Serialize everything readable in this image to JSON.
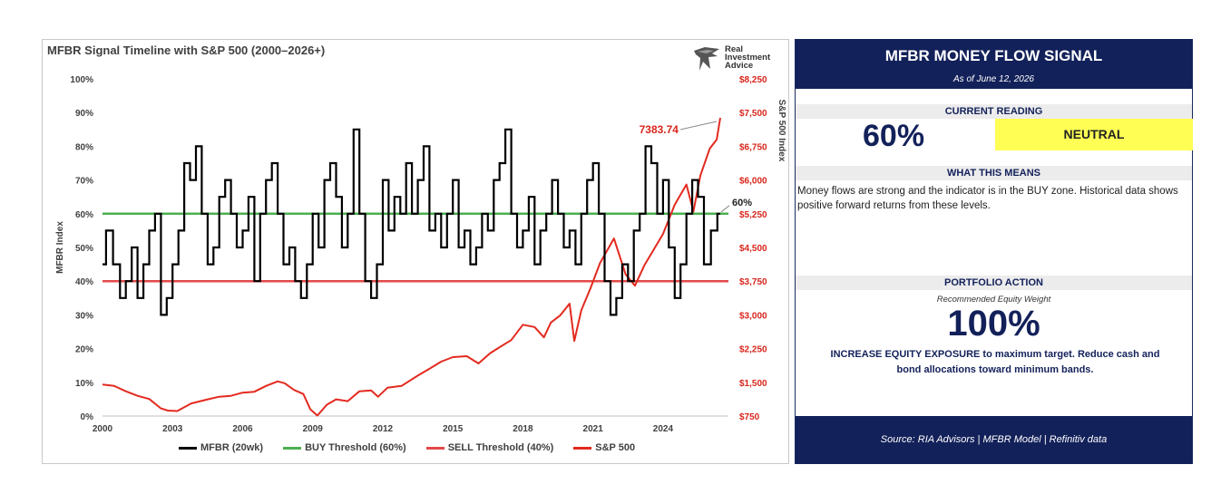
{
  "chart_data": {
    "type": "line",
    "title": "MFBR Signal Timeline with S&P 500 (2000–2026+)",
    "ylabel": "MFBR Index",
    "y2label": "S&P 500 Index",
    "ylim": [
      0,
      100
    ],
    "y2lim": [
      750,
      8250
    ],
    "xlim": [
      2000,
      2026.8
    ],
    "x_ticks": [
      "2000",
      "2003",
      "2006",
      "2009",
      "2012",
      "2015",
      "2018",
      "2021",
      "2024"
    ],
    "y_ticks": [
      "0%",
      "10%",
      "20%",
      "30%",
      "40%",
      "50%",
      "60%",
      "70%",
      "80%",
      "90%",
      "100%"
    ],
    "y2_ticks": [
      "$750",
      "$1,500",
      "$2,250",
      "$3,000",
      "$3,750",
      "$4,500",
      "$5,250",
      "$6,000",
      "$6,750",
      "$7,500",
      "$8,250"
    ],
    "thresholds": {
      "buy": 60,
      "sell": 40
    },
    "annotations": {
      "sp500_last": "7383.74",
      "mfbr_last": "60%"
    },
    "legend_placement": "bottom",
    "series": [
      {
        "name": "MFBR (20wk)",
        "color": "#000000",
        "x": [
          2000.0,
          2000.3,
          2000.6,
          2000.9,
          2001.1,
          2001.4,
          2001.6,
          2001.9,
          2002.1,
          2002.4,
          2002.6,
          2002.9,
          2003.1,
          2003.4,
          2003.6,
          2003.9,
          2004.1,
          2004.4,
          2004.6,
          2004.9,
          2005.1,
          2005.4,
          2005.6,
          2005.9,
          2006.1,
          2006.4,
          2006.6,
          2006.9,
          2007.1,
          2007.4,
          2007.6,
          2007.9,
          2008.1,
          2008.4,
          2008.6,
          2008.9,
          2009.1,
          2009.4,
          2009.6,
          2009.9,
          2010.1,
          2010.4,
          2010.6,
          2010.9,
          2011.1,
          2011.4,
          2011.6,
          2011.9,
          2012.1,
          2012.4,
          2012.6,
          2012.9,
          2013.1,
          2013.4,
          2013.6,
          2013.9,
          2014.1,
          2014.4,
          2014.6,
          2014.9,
          2015.1,
          2015.4,
          2015.6,
          2015.9,
          2016.1,
          2016.4,
          2016.6,
          2016.9,
          2017.1,
          2017.4,
          2017.6,
          2017.9,
          2018.1,
          2018.4,
          2018.6,
          2018.9,
          2019.1,
          2019.4,
          2019.6,
          2019.9,
          2020.1,
          2020.4,
          2020.6,
          2020.9,
          2021.1,
          2021.4,
          2021.6,
          2021.9,
          2022.1,
          2022.4,
          2022.6,
          2022.9,
          2023.1,
          2023.4,
          2023.6,
          2023.9,
          2024.1,
          2024.4,
          2024.6,
          2024.9,
          2025.1,
          2025.4,
          2025.6,
          2025.9,
          2026.2,
          2026.45
        ],
        "values": [
          45,
          55,
          45,
          35,
          40,
          50,
          35,
          45,
          55,
          60,
          30,
          35,
          45,
          55,
          75,
          70,
          80,
          60,
          45,
          50,
          65,
          70,
          60,
          50,
          55,
          65,
          40,
          60,
          70,
          75,
          60,
          45,
          50,
          40,
          35,
          45,
          60,
          50,
          70,
          75,
          65,
          50,
          60,
          85,
          60,
          40,
          35,
          45,
          70,
          55,
          65,
          60,
          75,
          60,
          70,
          80,
          55,
          60,
          50,
          60,
          70,
          50,
          55,
          45,
          50,
          60,
          55,
          70,
          75,
          85,
          60,
          50,
          55,
          65,
          45,
          55,
          60,
          70,
          60,
          50,
          55,
          45,
          60,
          70,
          75,
          60,
          40,
          30,
          35,
          45,
          40,
          55,
          60,
          80,
          75,
          60,
          70,
          50,
          35,
          45,
          60,
          70,
          65,
          45,
          55,
          60
        ]
      },
      {
        "name": "BUY Threshold (60%)",
        "color": "#4caf50"
      },
      {
        "name": "SELL Threshold (40%)",
        "color": "#e34949"
      },
      {
        "name": "S&P 500",
        "color": "#e32a1f",
        "x": [
          2000.0,
          2000.5,
          2001.0,
          2001.5,
          2002.0,
          2002.5,
          2002.8,
          2003.2,
          2003.8,
          2004.5,
          2005.0,
          2005.5,
          2006.0,
          2006.5,
          2007.0,
          2007.5,
          2007.8,
          2008.2,
          2008.6,
          2008.9,
          2009.2,
          2009.6,
          2010.0,
          2010.5,
          2011.0,
          2011.5,
          2011.8,
          2012.2,
          2012.8,
          2013.5,
          2014.0,
          2014.5,
          2015.0,
          2015.6,
          2016.1,
          2016.6,
          2017.0,
          2017.5,
          2018.0,
          2018.5,
          2018.9,
          2019.2,
          2019.6,
          2020.0,
          2020.2,
          2020.5,
          2020.9,
          2021.3,
          2021.9,
          2022.4,
          2022.8,
          2023.2,
          2023.6,
          2024.0,
          2024.5,
          2025.0,
          2025.3,
          2025.6,
          2026.0,
          2026.3,
          2026.45
        ],
        "values": [
          1450,
          1420,
          1300,
          1200,
          1130,
          920,
          870,
          860,
          1030,
          1120,
          1180,
          1200,
          1270,
          1290,
          1420,
          1520,
          1480,
          1330,
          1240,
          900,
          760,
          1000,
          1120,
          1080,
          1300,
          1320,
          1180,
          1380,
          1420,
          1650,
          1800,
          1960,
          2060,
          2080,
          1920,
          2150,
          2280,
          2440,
          2780,
          2730,
          2500,
          2830,
          2990,
          3250,
          2420,
          3100,
          3600,
          4150,
          4700,
          3900,
          3650,
          4100,
          4450,
          4800,
          5450,
          5900,
          5300,
          6100,
          6700,
          6900,
          7383.74
        ]
      }
    ]
  },
  "logo": {
    "line1": "Real",
    "line2": "Investment",
    "line3": "Advice"
  },
  "side": {
    "title": "MFBR MONEY FLOW SIGNAL",
    "date": "As of June 12, 2026",
    "current_reading_label": "CURRENT READING",
    "current_reading_value": "60%",
    "status": "NEUTRAL",
    "status_color": "#fefe55",
    "what_means_label": "WHAT THIS MEANS",
    "what_means_text": "Money flows are strong and the indicator is in the BUY zone. Historical data shows positive forward returns from these levels.",
    "portfolio_action_label": "PORTFOLIO ACTION",
    "weight_label": "Recommended Equity Weight",
    "weight_value": "100%",
    "action_text": "INCREASE EQUITY EXPOSURE to maximum target. Reduce cash and bond allocations toward minimum bands.",
    "source": "Source: RIA Advisors | MFBR Model | Refinitiv data",
    "navy": "#13215a"
  }
}
